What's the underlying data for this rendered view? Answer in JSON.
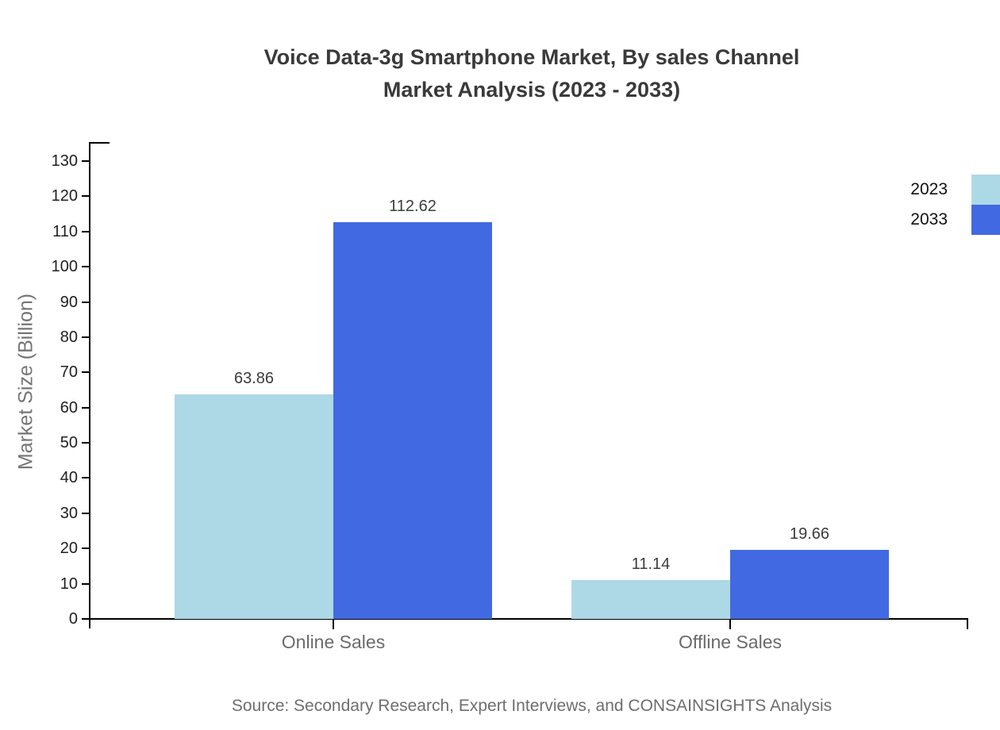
{
  "title": {
    "line1": "Voice Data-3g Smartphone Market, By sales Channel",
    "line2": "Market Analysis (2023 - 2033)"
  },
  "source": "Source: Secondary Research, Expert Interviews, and CONSAINSIGHTS Analysis",
  "chart_data": {
    "type": "bar",
    "title": "Voice Data-3g Smartphone Market, By sales Channel Market Analysis (2023 - 2033)",
    "categories": [
      "Online Sales",
      "Offline Sales"
    ],
    "series": [
      {
        "name": "2023",
        "color": "#ADD8E6",
        "values": [
          63.86,
          11.14
        ]
      },
      {
        "name": "2033",
        "color": "#4169E1",
        "values": [
          112.62,
          19.66
        ]
      }
    ],
    "xlabel": "",
    "ylabel": "Market Size (Billion)",
    "ylim": [
      0,
      135
    ],
    "yticks": [
      0,
      10,
      20,
      30,
      40,
      50,
      60,
      70,
      80,
      90,
      100,
      110,
      120,
      130
    ],
    "grid": false,
    "legend_position": "top-right",
    "value_labels": true
  }
}
